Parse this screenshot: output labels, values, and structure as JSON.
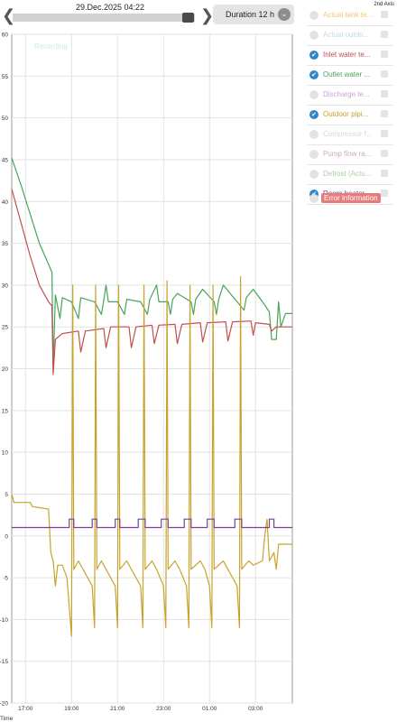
{
  "header": {
    "date": "29.Dec.2025 04:22",
    "duration_label": "Duration 12 h",
    "prev_icon": "chevron-left-icon",
    "next_icon": "chevron-right-icon"
  },
  "slider": {
    "position": 1.0
  },
  "legend": {
    "axis2_label": "2nd Axis",
    "items": [
      {
        "label": "Actual tank te...",
        "checked": false,
        "color": "#f6c66c"
      },
      {
        "label": "Actual outdo...",
        "checked": false,
        "color": "#bfd9e4"
      },
      {
        "label": "Inlet water te...",
        "checked": true,
        "color": "#c0504d"
      },
      {
        "label": "Outlet water ...",
        "checked": true,
        "color": "#4aa35a"
      },
      {
        "label": "Discharge te...",
        "checked": false,
        "color": "#c9a4de"
      },
      {
        "label": "Outdoor pipi...",
        "checked": true,
        "color": "#c8a32c"
      },
      {
        "label": "Compressor f...",
        "checked": false,
        "color": "#cfd9dd"
      },
      {
        "label": "Pump flow ra...",
        "checked": false,
        "color": "#cfaab6"
      },
      {
        "label": "Defrost (Actu...",
        "checked": false,
        "color": "#a8cfa0"
      },
      {
        "label": "Room heater ...",
        "checked": true,
        "color": "#7a3f9b"
      }
    ],
    "error_label": "Error information",
    "error_color": "#e47c7c"
  },
  "chart_data": {
    "type": "line",
    "recording_label": "Recording",
    "xlabel": "Time",
    "x_ticks": [
      "17:00",
      "19:00",
      "21:00",
      "23:00",
      "01:00",
      "03:00"
    ],
    "x_tick_hours": [
      17,
      19,
      21,
      23,
      25,
      27
    ],
    "x_range": [
      16.4,
      28.6
    ],
    "ylim": [
      -20,
      60
    ],
    "y_ticks": [
      -20,
      -15,
      -10,
      -5,
      0,
      5,
      10,
      15,
      20,
      25,
      30,
      35,
      40,
      45,
      50,
      55,
      60
    ],
    "grid": true,
    "series": [
      {
        "name": "Outlet water ...",
        "color": "#4aa35a",
        "points": [
          [
            16.4,
            45.2
          ],
          [
            16.8,
            42
          ],
          [
            17.2,
            38.5
          ],
          [
            17.6,
            35
          ],
          [
            18.0,
            32.5
          ],
          [
            18.15,
            31.5
          ],
          [
            18.2,
            20.2
          ],
          [
            18.3,
            28.8
          ],
          [
            18.5,
            26
          ],
          [
            18.6,
            28.5
          ],
          [
            19,
            28
          ],
          [
            19.3,
            26
          ],
          [
            19.4,
            28.5
          ],
          [
            20,
            28
          ],
          [
            20.3,
            26.5
          ],
          [
            20.4,
            28.2
          ],
          [
            20.5,
            30
          ],
          [
            20.6,
            28
          ],
          [
            21,
            28
          ],
          [
            21.3,
            26.5
          ],
          [
            21.4,
            28.3
          ],
          [
            22,
            28
          ],
          [
            22.3,
            26.5
          ],
          [
            22.4,
            28.3
          ],
          [
            22.7,
            30
          ],
          [
            22.8,
            28
          ],
          [
            23.2,
            28
          ],
          [
            23.3,
            26.5
          ],
          [
            23.4,
            28.3
          ],
          [
            23.6,
            29
          ],
          [
            24.2,
            28
          ],
          [
            24.3,
            26.5
          ],
          [
            24.4,
            28.3
          ],
          [
            24.7,
            29.5
          ],
          [
            25.2,
            28
          ],
          [
            25.3,
            26.5
          ],
          [
            25.4,
            28.3
          ],
          [
            25.6,
            30
          ],
          [
            26.2,
            28
          ],
          [
            26.5,
            27
          ],
          [
            26.6,
            28.5
          ],
          [
            26.9,
            29.5
          ],
          [
            27.3,
            28
          ],
          [
            27.6,
            26.8
          ],
          [
            27.7,
            23.5
          ],
          [
            27.9,
            23.5
          ],
          [
            28.0,
            28
          ],
          [
            28.1,
            25
          ],
          [
            28.3,
            26.6
          ],
          [
            28.6,
            26.6
          ]
        ]
      },
      {
        "name": "Inlet water te...",
        "color": "#c0504d",
        "points": [
          [
            16.4,
            41.5
          ],
          [
            16.8,
            37.5
          ],
          [
            17.2,
            33.5
          ],
          [
            17.6,
            30
          ],
          [
            18.0,
            28
          ],
          [
            18.15,
            27.5
          ],
          [
            18.2,
            19.3
          ],
          [
            18.3,
            23.5
          ],
          [
            18.6,
            24.2
          ],
          [
            19.3,
            24.5
          ],
          [
            19.4,
            22
          ],
          [
            19.6,
            24.5
          ],
          [
            20.4,
            24.8
          ],
          [
            20.5,
            22.5
          ],
          [
            20.7,
            25
          ],
          [
            21.5,
            25
          ],
          [
            21.6,
            22.5
          ],
          [
            21.8,
            25
          ],
          [
            22.5,
            25.2
          ],
          [
            22.6,
            23
          ],
          [
            22.8,
            25.2
          ],
          [
            23.5,
            25.3
          ],
          [
            23.6,
            23
          ],
          [
            23.8,
            25.3
          ],
          [
            24.6,
            25.5
          ],
          [
            24.7,
            23.2
          ],
          [
            24.9,
            25.5
          ],
          [
            25.7,
            25.6
          ],
          [
            25.8,
            23.3
          ],
          [
            26.0,
            25.6
          ],
          [
            26.8,
            25.7
          ],
          [
            26.9,
            24
          ],
          [
            27.0,
            25.5
          ],
          [
            27.6,
            25.3
          ],
          [
            27.7,
            24.5
          ],
          [
            27.9,
            25.0
          ],
          [
            28.6,
            25.0
          ]
        ]
      },
      {
        "name": "Outdoor pipi...",
        "color": "#c8a32c",
        "points": [
          [
            16.4,
            5
          ],
          [
            16.5,
            4
          ],
          [
            17.2,
            4
          ],
          [
            17.3,
            3.5
          ],
          [
            18.0,
            3.2
          ],
          [
            18.1,
            -2
          ],
          [
            18.2,
            -3
          ],
          [
            18.3,
            -6
          ],
          [
            18.4,
            -3.5
          ],
          [
            18.6,
            -3.5
          ],
          [
            18.8,
            -5
          ],
          [
            19.0,
            -12
          ],
          [
            19.05,
            30
          ],
          [
            19.1,
            -4
          ],
          [
            19.3,
            -3
          ],
          [
            19.5,
            -4
          ],
          [
            19.9,
            -6
          ],
          [
            20.0,
            -11
          ],
          [
            20.05,
            30
          ],
          [
            20.1,
            -4
          ],
          [
            20.3,
            -3
          ],
          [
            20.5,
            -4
          ],
          [
            20.9,
            -6
          ],
          [
            21.0,
            -11
          ],
          [
            21.05,
            30
          ],
          [
            21.1,
            -4
          ],
          [
            21.4,
            -3
          ],
          [
            21.6,
            -4
          ],
          [
            22.0,
            -6
          ],
          [
            22.1,
            -11
          ],
          [
            22.15,
            30
          ],
          [
            22.2,
            -4
          ],
          [
            22.5,
            -3
          ],
          [
            22.7,
            -4
          ],
          [
            23.0,
            -6
          ],
          [
            23.1,
            -11
          ],
          [
            23.15,
            30.5
          ],
          [
            23.2,
            -4
          ],
          [
            23.5,
            -3
          ],
          [
            23.7,
            -4
          ],
          [
            24.0,
            -6
          ],
          [
            24.1,
            -11
          ],
          [
            24.15,
            30
          ],
          [
            24.2,
            -4
          ],
          [
            24.6,
            -3
          ],
          [
            24.8,
            -4
          ],
          [
            25.0,
            -6
          ],
          [
            25.1,
            -11
          ],
          [
            25.15,
            30
          ],
          [
            25.2,
            -4
          ],
          [
            25.6,
            -3
          ],
          [
            25.8,
            -4
          ],
          [
            26.2,
            -6
          ],
          [
            26.3,
            -11
          ],
          [
            26.35,
            31
          ],
          [
            26.4,
            -4
          ],
          [
            26.7,
            -3
          ],
          [
            26.9,
            -3.5
          ],
          [
            27.3,
            -3
          ],
          [
            27.4,
            0
          ],
          [
            27.5,
            2
          ],
          [
            27.6,
            -3
          ],
          [
            27.8,
            -2
          ],
          [
            27.9,
            -4
          ],
          [
            28.0,
            -1
          ],
          [
            28.6,
            -1
          ]
        ]
      },
      {
        "name": "Room heater ...",
        "color": "#7a3f9b",
        "points": [
          [
            16.4,
            1
          ],
          [
            18.9,
            1
          ],
          [
            18.9,
            2
          ],
          [
            19.1,
            2
          ],
          [
            19.1,
            1
          ],
          [
            19.9,
            1
          ],
          [
            19.9,
            2
          ],
          [
            20.1,
            2
          ],
          [
            20.1,
            1
          ],
          [
            20.9,
            1
          ],
          [
            20.9,
            2
          ],
          [
            21.1,
            2
          ],
          [
            21.1,
            1
          ],
          [
            21.9,
            1
          ],
          [
            21.9,
            2
          ],
          [
            22.2,
            2
          ],
          [
            22.2,
            1
          ],
          [
            22.9,
            1
          ],
          [
            22.9,
            2
          ],
          [
            23.2,
            2
          ],
          [
            23.2,
            1
          ],
          [
            23.9,
            1
          ],
          [
            23.9,
            2
          ],
          [
            24.2,
            2
          ],
          [
            24.2,
            1
          ],
          [
            24.9,
            1
          ],
          [
            24.9,
            2
          ],
          [
            25.2,
            2
          ],
          [
            25.2,
            1
          ],
          [
            26.1,
            1
          ],
          [
            26.1,
            2
          ],
          [
            26.4,
            2
          ],
          [
            26.4,
            1
          ],
          [
            27.6,
            1
          ],
          [
            27.6,
            2
          ],
          [
            27.8,
            2
          ],
          [
            27.8,
            1
          ],
          [
            28.6,
            1
          ]
        ]
      }
    ]
  }
}
